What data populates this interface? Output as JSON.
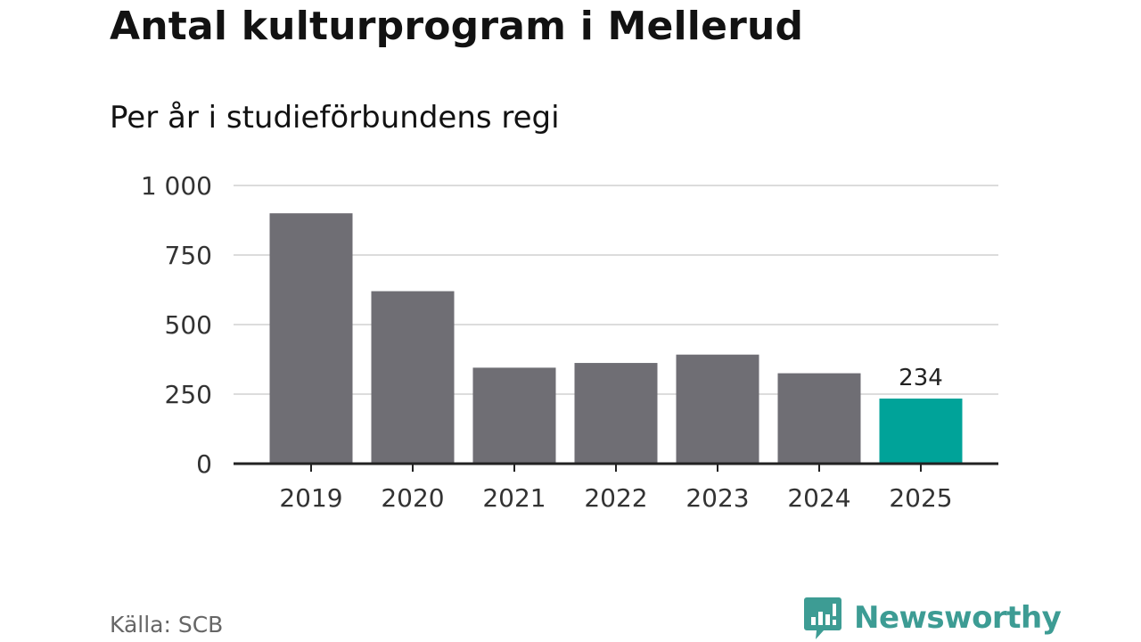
{
  "header": {
    "title": "Antal kulturprogram i Mellerud",
    "subtitle": "Per år i studieförbundens regi"
  },
  "footer": {
    "source": "Källa: SCB",
    "brand": "Newsworthy",
    "brand_icon": "bar-chart-speech-bubble-icon"
  },
  "colors": {
    "bar_default": "#6f6e74",
    "bar_highlight": "#00a399",
    "gridline": "#dcdcdc",
    "axis": "#222222",
    "brand": "#3d9c94"
  },
  "chart_data": {
    "type": "bar",
    "categories": [
      "2019",
      "2020",
      "2021",
      "2022",
      "2023",
      "2024",
      "2025"
    ],
    "values": [
      900,
      620,
      345,
      362,
      392,
      325,
      234
    ],
    "highlight_index": 6,
    "data_labels": [
      {
        "index": 6,
        "text": "234"
      }
    ],
    "ylim": [
      0,
      1000
    ],
    "y_ticks": [
      0,
      250,
      500,
      750,
      1000
    ],
    "y_tick_labels": [
      "0",
      "250",
      "500",
      "750",
      "1 000"
    ],
    "grid": true,
    "legend": "none"
  }
}
